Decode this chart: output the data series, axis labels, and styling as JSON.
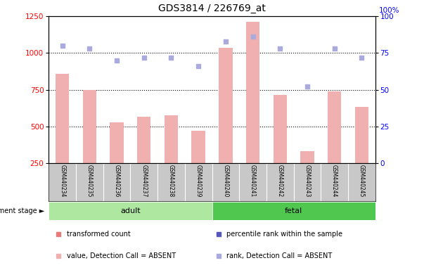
{
  "title": "GDS3814 / 226769_at",
  "samples": [
    "GSM440234",
    "GSM440235",
    "GSM440236",
    "GSM440237",
    "GSM440238",
    "GSM440239",
    "GSM440240",
    "GSM440241",
    "GSM440242",
    "GSM440243",
    "GSM440244",
    "GSM440245"
  ],
  "groups": [
    "adult",
    "adult",
    "adult",
    "adult",
    "adult",
    "adult",
    "fetal",
    "fetal",
    "fetal",
    "fetal",
    "fetal",
    "fetal"
  ],
  "bar_values": [
    860,
    750,
    530,
    565,
    575,
    470,
    1035,
    1210,
    715,
    335,
    740,
    635
  ],
  "rank_values": [
    80,
    78,
    70,
    72,
    72,
    66,
    83,
    86,
    78,
    52,
    78,
    72
  ],
  "bar_color": "#f0b0b0",
  "rank_color": "#aaaadd",
  "ylim_left": [
    250,
    1250
  ],
  "ylim_right": [
    0,
    100
  ],
  "yticks_left": [
    250,
    500,
    750,
    1000,
    1250
  ],
  "yticks_right": [
    0,
    25,
    50,
    75,
    100
  ],
  "grid_lines": [
    500,
    750,
    1000
  ],
  "adult_color": "#aee8a0",
  "fetal_color": "#50c850",
  "sample_bg": "#c8c8c8",
  "legend_items": [
    {
      "label": "transformed count",
      "color": "#e87a7a"
    },
    {
      "label": "percentile rank within the sample",
      "color": "#5555bb"
    },
    {
      "label": "value, Detection Call = ABSENT",
      "color": "#f0b0b0"
    },
    {
      "label": "rank, Detection Call = ABSENT",
      "color": "#aaaadd"
    }
  ],
  "figsize": [
    6.03,
    3.84
  ],
  "dpi": 100
}
